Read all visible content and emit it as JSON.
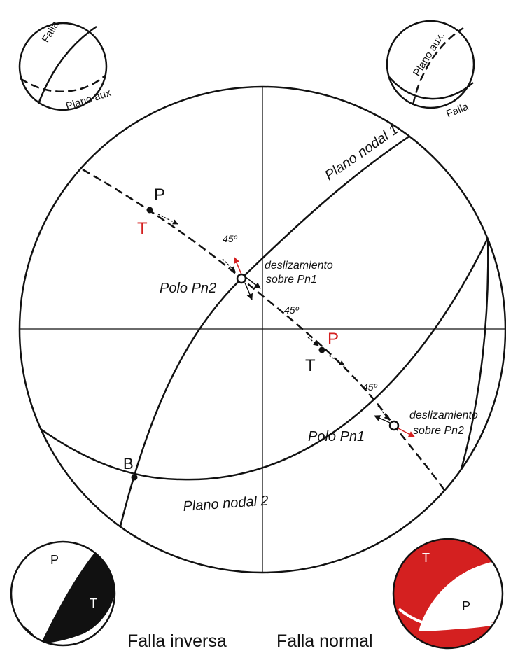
{
  "insets": {
    "top_left": [
      "Falla",
      "Plano aux"
    ],
    "top_right": [
      "Plano aux.",
      "Falla"
    ],
    "bottom_left": [
      "P",
      "T"
    ],
    "bottom_right": [
      "T",
      "P"
    ]
  },
  "main": {
    "nodal_plane_1": "Plano nodal 1",
    "nodal_plane_2": "Plano nodal 2",
    "pole_2": "Polo Pn2",
    "pole_1": "Polo Pn1",
    "slip_on_1": [
      "deslizamiento",
      "sobre Pn1"
    ],
    "slip_on_2": [
      "deslizamiento",
      "sobre Pn2"
    ],
    "angles": [
      "45º",
      "45º",
      "45º"
    ],
    "axes_upper": [
      "P",
      "T"
    ],
    "axes_lower": [
      "P",
      "T"
    ],
    "b_axis": "B"
  },
  "captions": [
    "Falla inversa",
    "Falla normal"
  ]
}
